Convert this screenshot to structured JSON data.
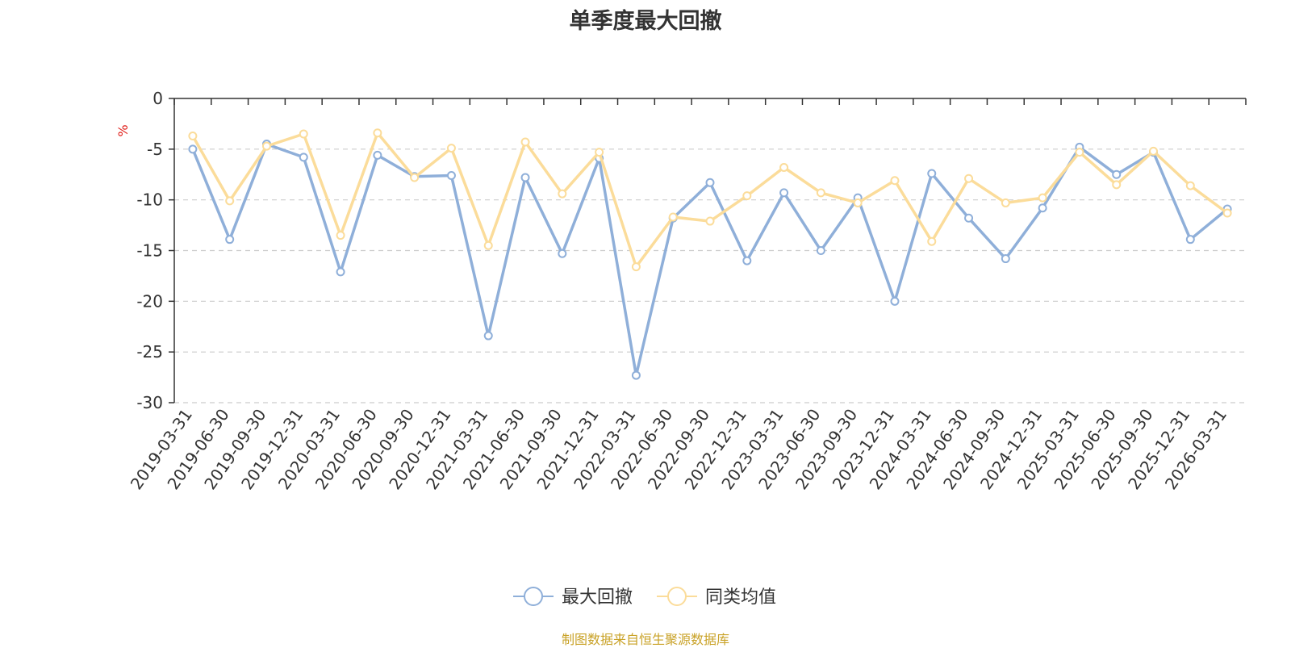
{
  "chart_data": {
    "type": "line",
    "title": "单季度最大回撤",
    "ylabel": "%",
    "xlabel": "",
    "ylim": [
      -30,
      0
    ],
    "yticks": [
      0,
      -5,
      -10,
      -15,
      -20,
      -25,
      -30
    ],
    "grid": true,
    "legend_position": "bottom",
    "categories": [
      "2019-03-31",
      "2019-06-30",
      "2019-09-30",
      "2019-12-31",
      "2020-03-31",
      "2020-06-30",
      "2020-09-30",
      "2020-12-31",
      "2021-03-31",
      "2021-06-30",
      "2021-09-30",
      "2021-12-31",
      "2022-03-31",
      "2022-06-30",
      "2022-09-30",
      "2022-12-31",
      "2023-03-31",
      "2023-06-30",
      "2023-09-30",
      "2023-12-31",
      "2024-03-31",
      "2024-06-30",
      "2024-09-30",
      "2024-12-31",
      "2025-03-31",
      "2025-06-30",
      "2025-09-30",
      "2025-12-31",
      "2026-03-31"
    ],
    "series": [
      {
        "name": "最大回撤",
        "color": "#8fafd9",
        "values": [
          -5.0,
          -13.9,
          -4.5,
          -5.8,
          -17.1,
          -5.6,
          -7.7,
          -7.6,
          -23.4,
          -7.8,
          -15.3,
          -5.9,
          -27.3,
          -11.8,
          -8.3,
          -16.0,
          -9.3,
          -15.0,
          -9.8,
          -20.0,
          -7.4,
          -11.8,
          -15.8,
          -10.8,
          -4.8,
          -7.5,
          -5.3,
          -13.9,
          -10.9
        ]
      },
      {
        "name": "同类均值",
        "color": "#fbdc9a",
        "values": [
          -3.7,
          -10.1,
          -4.7,
          -3.5,
          -13.5,
          -3.4,
          -7.8,
          -4.9,
          -14.5,
          -4.3,
          -9.4,
          -5.3,
          -16.6,
          -11.7,
          -12.1,
          -9.6,
          -6.8,
          -9.3,
          -10.3,
          -8.1,
          -14.1,
          -7.9,
          -10.3,
          -9.8,
          -5.3,
          -8.5,
          -5.2,
          -8.6,
          -11.3
        ]
      }
    ]
  },
  "source_note": "制图数据来自恒生聚源数据库"
}
